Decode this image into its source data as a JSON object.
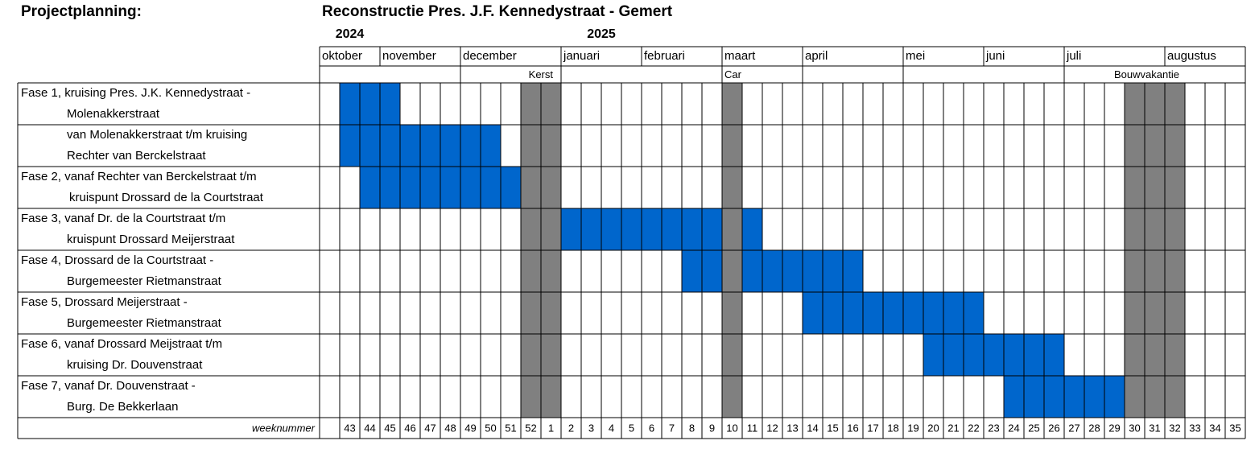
{
  "chart_data": {
    "type": "gantt",
    "header_label": "Projectplanning:",
    "title": "Reconstructie Pres. J.F. Kennedystraat - Gemert",
    "years": [
      2024,
      2025
    ],
    "weeks": [
      null,
      43,
      44,
      45,
      46,
      47,
      48,
      49,
      50,
      51,
      52,
      1,
      2,
      3,
      4,
      5,
      6,
      7,
      8,
      9,
      10,
      11,
      12,
      13,
      14,
      15,
      16,
      17,
      18,
      19,
      20,
      21,
      22,
      23,
      24,
      25,
      26,
      27,
      28,
      29,
      30,
      31,
      32,
      33,
      34,
      35
    ],
    "week_axis_label": "weeknummer",
    "months": [
      {
        "label": "oktober",
        "start": null
      },
      {
        "label": "november",
        "start": 45
      },
      {
        "label": "december",
        "start": 49
      },
      {
        "label": "januari",
        "start": 2
      },
      {
        "label": "februari",
        "start": 6
      },
      {
        "label": "maart",
        "start": 10
      },
      {
        "label": "april",
        "start": 14
      },
      {
        "label": "mei",
        "start": 19
      },
      {
        "label": "juni",
        "start": 23
      },
      {
        "label": "juli",
        "start": 27
      },
      {
        "label": "augustus",
        "start": 32
      }
    ],
    "holidays": [
      {
        "label": "Kerst",
        "weeks": [
          52,
          1
        ]
      },
      {
        "label": "Car",
        "weeks": [
          10
        ]
      },
      {
        "label": "Bouwvakantie",
        "weeks": [
          30,
          31,
          32
        ]
      }
    ],
    "bar_color": "#0066cc",
    "holiday_color": "#808080",
    "phases": [
      {
        "lines": [
          "Fase 1, kruising Pres. J.K. Kennedystraat -",
          "Molenakkerstraat"
        ],
        "start": 43,
        "end": 45
      },
      {
        "lines": [
          "van Molenakkerstraat t/m kruising",
          "Rechter van Berckelstraat"
        ],
        "start": 43,
        "end": 50
      },
      {
        "lines": [
          "Fase 2, vanaf Rechter van Berckelstraat t/m",
          "kruispunt Drossard de la Courtstraat"
        ],
        "start": 44,
        "end": 51
      },
      {
        "lines": [
          "Fase 3, vanaf Dr. de la Courtstraat t/m",
          "kruispunt Drossard Meijerstraat"
        ],
        "start": 2,
        "end": 11
      },
      {
        "lines": [
          "Fase 4, Drossard de la Courtstraat -",
          "Burgemeester Rietmanstraat"
        ],
        "start": 8,
        "end": 16
      },
      {
        "lines": [
          "Fase 5, Drossard Meijerstraat -",
          "Burgemeester Rietmanstraat"
        ],
        "start": 14,
        "end": 22
      },
      {
        "lines": [
          "Fase 6, vanaf Drossard Meijstraat t/m",
          "kruising Dr. Douvenstraat"
        ],
        "start": 20,
        "end": 26
      },
      {
        "lines": [
          "Fase 7,  vanaf Dr. Douvenstraat -",
          "Burg. De Bekkerlaan"
        ],
        "start": 24,
        "end": 29
      }
    ]
  }
}
